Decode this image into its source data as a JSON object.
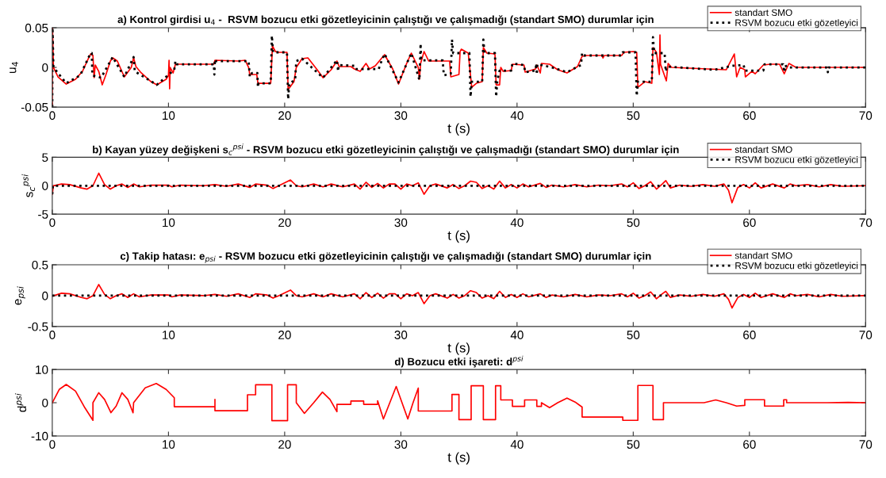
{
  "chart_data": [
    {
      "type": "line",
      "title": "a) Kontrol girdisi u$_{4}$ -  RSVM bozucu etki gözetleyicinin çalıştığı ve çalışmadığı (standart SMO) durumlar için",
      "xlabel": "t (s)",
      "ylabel": "u$_{4}$",
      "xlim": [
        0,
        70
      ],
      "xticks": [
        0,
        10,
        20,
        30,
        40,
        50,
        60,
        70
      ],
      "ylim": [
        -0.05,
        0.05
      ],
      "yticks": [
        -0.05,
        0,
        0.05
      ],
      "grid": false,
      "legend": "top right",
      "series": [
        {
          "name": "standart SMO",
          "color": "#ff0000",
          "line_style": "solid",
          "x": [
            0,
            0.02,
            0.1,
            0.5,
            1.2,
            2.0,
            2.6,
            3.0,
            3.3,
            3.5,
            3.6,
            3.7,
            4.0,
            4.3,
            4.6,
            5.0,
            5.2,
            5.6,
            6.2,
            6.8,
            7.0,
            7.2,
            7.6,
            8.5,
            9.0,
            9.8,
            10.0,
            10.05,
            10.1,
            10.15,
            10.4,
            10.6,
            11,
            13.9,
            14.0,
            16.0,
            16.6,
            16.9,
            17.0,
            17.6,
            17.7,
            18.8,
            18.95,
            19.2,
            19.5,
            20.2,
            20.3,
            20.8,
            21.0,
            21.5,
            22.0,
            22.8,
            23.3,
            24.0,
            24.5,
            24.7,
            25.7,
            26.0,
            26.5,
            27.0,
            27.3,
            27.8,
            28.6,
            29.3,
            29.8,
            30.5,
            30.9,
            31.5,
            31.6,
            31.7,
            32.0,
            32.4,
            33.5,
            34.2,
            34.3,
            35.0,
            35.1,
            35.2,
            35.8,
            36.1,
            36.5,
            37.0,
            37.1,
            37.4,
            38.1,
            38.2,
            38.5,
            38.6,
            38.8,
            39.5,
            39.6,
            40.6,
            40.7,
            41.6,
            41.7,
            42.0,
            42.1,
            42.8,
            43.5,
            44.3,
            45.2,
            45.6,
            46,
            47.3,
            47.4,
            47.5,
            49.0,
            49.2,
            50.0,
            50.3,
            50.4,
            51.0,
            51.6,
            51.7,
            52.0,
            52.25,
            52.3,
            52.35,
            52.85,
            53.0,
            53.3,
            58.0,
            58.7,
            58.9,
            59.2,
            59.6,
            59.65,
            60.2,
            60.5,
            61.2,
            61.8,
            62.6,
            63.0,
            63.4,
            64,
            70
          ],
          "values": [
            -0.05,
            0.05,
            0.0,
            -0.012,
            -0.021,
            -0.015,
            -0.005,
            0.008,
            0.017,
            0.015,
            -0.013,
            0.003,
            -0.005,
            -0.022,
            -0.01,
            0.008,
            0.012,
            0.008,
            -0.012,
            0.0,
            0.012,
            0.001,
            -0.006,
            -0.018,
            -0.022,
            -0.015,
            -0.01,
            0.009,
            -0.027,
            0.0,
            -0.007,
            0.004,
            0.004,
            0.004,
            0.009,
            0.008,
            0.009,
            0.0,
            -0.009,
            -0.009,
            -0.02,
            -0.02,
            0.027,
            0.02,
            0.019,
            0.019,
            -0.028,
            -0.018,
            0.0,
            0.011,
            0.012,
            -0.003,
            -0.013,
            -0.003,
            0.008,
            0.001,
            0.001,
            -0.002,
            -0.005,
            0.005,
            -0.002,
            0.002,
            0.016,
            -0.002,
            -0.021,
            0.005,
            0.018,
            0.0,
            -0.015,
            0.005,
            0.02,
            0.008,
            0.008,
            0.008,
            -0.012,
            -0.009,
            0.02,
            0.023,
            0.018,
            -0.025,
            -0.02,
            -0.018,
            0.025,
            0.018,
            0.017,
            -0.022,
            -0.022,
            0.0,
            -0.005,
            -0.004,
            0.004,
            0.003,
            -0.006,
            -0.002,
            0.003,
            -0.007,
            0.005,
            0.004,
            -0.003,
            -0.007,
            0.001,
            0.014,
            0.015,
            0.015,
            0.012,
            0.015,
            0.015,
            0.019,
            0.02,
            0.019,
            -0.025,
            -0.018,
            -0.02,
            0.025,
            0.019,
            -0.009,
            0.041,
            0.004,
            -0.017,
            0.005,
            0.0,
            -0.003,
            0.017,
            -0.012,
            0.0,
            -0.003,
            -0.012,
            -0.005,
            -0.008,
            0.003,
            0.004,
            0.004,
            -0.008,
            0.005,
            0.0,
            0.0
          ]
        },
        {
          "name": "RSVM bozucu etki gözetleyici",
          "color": "#000000",
          "line_style": "dotted",
          "x": [
            0,
            0.02,
            0.1,
            1.2,
            2.4,
            3.3,
            3.4,
            3.45,
            4.2,
            5.2,
            6.2,
            7.0,
            7.1,
            9.0,
            10.5,
            10.6,
            10.7,
            13.9,
            13.95,
            14.0,
            14.05,
            16.9,
            17.0,
            17.2,
            17.65,
            17.7,
            17.75,
            18.8,
            18.9,
            19.0,
            20.2,
            20.3,
            20.4,
            20.9,
            21.0,
            21.5,
            23.3,
            24.5,
            24.6,
            24.65,
            26.0,
            26.1,
            28.1,
            28.2,
            28.6,
            29.8,
            30.9,
            31.6,
            31.7,
            31.75,
            33.6,
            33.7,
            34.3,
            34.4,
            34.5,
            35.9,
            36.0,
            36.1,
            37.0,
            37.1,
            37.2,
            38.1,
            38.2,
            38.3,
            38.5,
            39.5,
            39.6,
            40.6,
            40.7,
            41.6,
            41.65,
            41.7,
            41.75,
            43.0,
            44.3,
            45.5,
            45.6,
            45.7,
            49.0,
            49.1,
            50.2,
            50.3,
            50.4,
            51.6,
            51.7,
            51.8,
            52.7,
            52.8,
            52.9,
            56,
            57,
            58.5,
            59.5,
            59.6,
            61.2,
            61.3,
            62.9,
            63.0,
            63.1,
            63.2,
            66.7,
            66.75,
            66.8,
            70
          ],
          "values": [
            -0.05,
            0.05,
            0.0,
            -0.02,
            -0.01,
            0.018,
            0.018,
            -0.01,
            -0.013,
            0.013,
            -0.012,
            0.013,
            -0.005,
            -0.022,
            -0.003,
            0.008,
            0.004,
            0.004,
            -0.009,
            0.01,
            0.008,
            0.008,
            -0.012,
            -0.007,
            -0.007,
            -0.025,
            -0.02,
            -0.02,
            0.04,
            0.019,
            0.019,
            -0.04,
            -0.02,
            -0.016,
            0.008,
            0.011,
            -0.013,
            0.009,
            -0.005,
            0.003,
            0.002,
            -0.002,
            -0.002,
            0.003,
            0.017,
            -0.019,
            0.018,
            -0.016,
            0.03,
            0.009,
            0.009,
            -0.01,
            -0.008,
            0.035,
            0.018,
            0.018,
            -0.037,
            -0.018,
            -0.018,
            0.035,
            0.018,
            0.018,
            -0.037,
            -0.017,
            -0.004,
            -0.004,
            0.005,
            0.003,
            -0.006,
            -0.004,
            0.005,
            -0.009,
            0.004,
            0.0,
            -0.006,
            0.003,
            0.018,
            0.015,
            0.015,
            0.019,
            0.019,
            -0.036,
            -0.018,
            -0.018,
            0.038,
            0.018,
            0.018,
            -0.005,
            0.001,
            -0.002,
            -0.003,
            0.002,
            0.003,
            -0.004,
            -0.004,
            0.004,
            0.004,
            -0.006,
            0.003,
            0.0,
            0.0,
            -0.006,
            0.0,
            0.0
          ]
        }
      ]
    },
    {
      "type": "line",
      "title": "b) Kayan yüzey değişkeni s$_{c}$$^{psi}$ - RSVM bozucu etki gözetleyicinin çalıştığı ve çalışmadığı (standart SMO) durumlar için",
      "xlabel": "t (s)",
      "ylabel": "s$_{c}$$^{psi}$",
      "xlim": [
        0,
        70
      ],
      "xticks": [
        0,
        10,
        20,
        30,
        40,
        50,
        60,
        70
      ],
      "ylim": [
        -5,
        5
      ],
      "yticks": [
        -5,
        0,
        5
      ],
      "grid": false,
      "legend": "top right",
      "series": [
        {
          "name": "standart SMO",
          "color": "#ff0000",
          "line_style": "solid",
          "x": [
            0,
            0.1,
            0.8,
            1.5,
            2.5,
            3,
            3.5,
            4.0,
            4.5,
            5,
            5.5,
            6,
            6.5,
            7,
            7.5,
            8.5,
            10,
            10.3,
            11,
            13,
            14,
            15,
            16,
            17,
            17.5,
            18.5,
            19,
            19.5,
            20.5,
            21,
            21.5,
            22.5,
            23.3,
            24,
            25,
            26,
            26.5,
            27,
            27.5,
            28,
            28.5,
            29,
            29.5,
            30,
            30.5,
            31,
            31.5,
            32,
            32.5,
            33,
            34,
            34.5,
            35,
            35.5,
            36,
            36.5,
            37,
            37.5,
            38,
            38.5,
            39,
            39.5,
            40,
            40.5,
            41,
            42,
            42.5,
            43,
            44,
            45,
            46,
            47,
            48,
            49,
            49.5,
            50,
            50.5,
            51,
            51.5,
            52,
            52.5,
            52.8,
            53.2,
            54,
            55,
            56,
            57,
            57.8,
            58.2,
            58.5,
            59,
            59.5,
            60,
            60.5,
            61,
            62,
            63,
            63.5,
            64,
            65,
            66,
            67,
            68,
            70
          ],
          "values": [
            -1.5,
            0,
            0.3,
            0.2,
            -0.4,
            -0.6,
            0,
            2.2,
            0.2,
            -0.6,
            0,
            0.3,
            -0.3,
            0.3,
            -0.2,
            0.1,
            0.1,
            -0.2,
            0.1,
            0,
            0.2,
            -0.1,
            0.3,
            -0.3,
            0.3,
            0.1,
            -0.5,
            0,
            1.0,
            0,
            -0.2,
            0.3,
            -0.2,
            0.3,
            -0.2,
            0.3,
            -0.6,
            0.6,
            -0.3,
            0.4,
            -0.4,
            0.3,
            0.3,
            -0.6,
            0.3,
            0,
            0.5,
            -1.5,
            0,
            0.3,
            -0.4,
            0.2,
            -0.5,
            0,
            0.8,
            0.6,
            -0.5,
            0,
            -0.6,
            0.8,
            -0.4,
            0.2,
            -0.4,
            0.3,
            -0.2,
            0.4,
            -0.3,
            0.1,
            -0.2,
            0.2,
            -0.2,
            0.1,
            0,
            0.3,
            -0.2,
            0.5,
            -0.5,
            0,
            0.7,
            -0.6,
            0.3,
            0.9,
            -0.4,
            0.1,
            -0.1,
            0.2,
            -0.1,
            0.3,
            -0.8,
            -3.0,
            -0.3,
            0.2,
            -0.4,
            0.5,
            -0.4,
            0.3,
            -0.4,
            0.3,
            0,
            0.2,
            -0.2,
            0.2,
            -0.1,
            0
          ]
        },
        {
          "name": "RSVM bozucu etki gözetleyici",
          "color": "#000000",
          "line_style": "dotted",
          "x": [
            0,
            0.05,
            70
          ],
          "values": [
            -1.5,
            0,
            0
          ]
        }
      ]
    },
    {
      "type": "line",
      "title": "c) Takip hatası: e$_{psi}$ - RSVM bozucu etki gözetleyicinin çalıştığı ve çalışmadığı (standart SMO) durumlar için",
      "xlabel": "t (s)",
      "ylabel": "e$_{psi}$",
      "xlim": [
        0,
        70
      ],
      "xticks": [
        0,
        10,
        20,
        30,
        40,
        50,
        60,
        70
      ],
      "ylim": [
        -0.5,
        0.5
      ],
      "yticks": [
        -0.5,
        0,
        0.5
      ],
      "grid": false,
      "legend": "top right",
      "series": [
        {
          "name": "standart SMO",
          "color": "#ff0000",
          "line_style": "solid",
          "x": [
            0,
            0.1,
            0.8,
            1.5,
            2.5,
            3,
            3.5,
            4.0,
            4.5,
            5,
            5.5,
            6,
            6.5,
            7,
            7.5,
            8.5,
            10,
            10.3,
            11,
            13,
            14,
            15,
            16,
            17,
            17.5,
            18.5,
            19,
            19.5,
            20.5,
            21,
            21.5,
            22.5,
            23.3,
            24,
            25,
            26,
            26.5,
            27,
            27.5,
            28,
            28.5,
            29,
            29.5,
            30,
            30.5,
            31,
            31.5,
            32,
            32.5,
            33,
            34,
            34.5,
            35,
            35.5,
            36,
            36.5,
            37,
            37.5,
            38,
            38.5,
            39,
            39.5,
            40,
            40.5,
            41,
            42,
            42.5,
            43,
            44,
            45,
            46,
            47,
            48,
            49,
            49.5,
            50,
            50.5,
            51,
            51.5,
            52,
            52.5,
            52.8,
            53.2,
            54,
            55,
            56,
            57,
            57.8,
            58.2,
            58.5,
            59,
            59.5,
            60,
            60.5,
            61,
            62,
            63,
            63.5,
            64,
            65,
            66,
            67,
            68,
            70
          ],
          "values": [
            -0.01,
            0,
            0.04,
            0.03,
            -0.03,
            -0.05,
            0,
            0.18,
            0.02,
            -0.05,
            0,
            0.03,
            -0.03,
            0.03,
            -0.02,
            0.01,
            0.01,
            -0.02,
            0.01,
            0,
            0.02,
            -0.01,
            0.03,
            -0.03,
            0.03,
            0.01,
            -0.04,
            0,
            0.09,
            0,
            -0.02,
            0.03,
            -0.02,
            0.03,
            -0.02,
            0.03,
            -0.05,
            0.05,
            -0.03,
            0.04,
            -0.04,
            0.03,
            0.03,
            -0.05,
            0.03,
            0,
            0.05,
            -0.13,
            0,
            0.03,
            -0.04,
            0.02,
            -0.04,
            0,
            0.08,
            0.05,
            -0.04,
            0,
            -0.05,
            0.07,
            -0.03,
            0.02,
            -0.03,
            0.03,
            -0.02,
            0.03,
            -0.03,
            0.01,
            -0.02,
            0.02,
            -0.02,
            0.01,
            0,
            0.03,
            -0.02,
            0.04,
            -0.04,
            0,
            0.06,
            -0.05,
            0.03,
            0.07,
            -0.03,
            0.01,
            -0.01,
            0.02,
            -0.01,
            0.03,
            -0.06,
            -0.2,
            -0.03,
            0.02,
            -0.03,
            0.04,
            -0.03,
            0.03,
            -0.03,
            0.03,
            0,
            0.02,
            -0.02,
            0.02,
            -0.01,
            0
          ]
        },
        {
          "name": "RSVM bozucu etki gözetleyici",
          "color": "#000000",
          "line_style": "dotted",
          "x": [
            0,
            70
          ],
          "values": [
            0,
            0
          ]
        }
      ]
    },
    {
      "type": "line",
      "title": "d) Bozucu etki işareti: d$^{psi}$",
      "xlabel": "t (s)",
      "ylabel": "d$^{psi}$",
      "xlim": [
        0,
        70
      ],
      "xticks": [
        0,
        10,
        20,
        30,
        40,
        50,
        60,
        70
      ],
      "ylim": [
        -10,
        10
      ],
      "yticks": [
        -10,
        0,
        10
      ],
      "grid": false,
      "series": [
        {
          "color": "#ff0000",
          "line_style": "solid",
          "x": [
            0,
            0.6,
            1.2,
            2.0,
            2.8,
            3.5,
            3.5,
            4.0,
            4.5,
            5.05,
            5.5,
            6.0,
            6.5,
            6.95,
            7.0,
            8.0,
            8.95,
            9.8,
            10.5,
            10.5,
            14.0,
            14.0,
            14.0,
            16.8,
            16.8,
            17.5,
            17.5,
            18.9,
            18.9,
            20.25,
            20.25,
            21.0,
            21.0,
            21.7,
            22.5,
            23.25,
            23.9,
            24.5,
            24.5,
            25.7,
            25.7,
            26.8,
            26.8,
            28.0,
            28.0,
            28.5,
            29.05,
            29.6,
            30.1,
            30.6,
            31.05,
            31.5,
            31.5,
            34.4,
            34.4,
            35.0,
            35.0,
            36.05,
            36.05,
            37.1,
            37.1,
            38.15,
            38.15,
            38.6,
            38.6,
            39.6,
            39.6,
            40.65,
            40.65,
            41.7,
            41.7,
            42.1,
            42.1,
            42.8,
            43.5,
            44.3,
            45.0,
            45.6,
            45.6,
            49.1,
            49.1,
            50.4,
            50.4,
            51.7,
            51.7,
            52.6,
            52.6,
            56.1,
            57.1,
            58.0,
            58.9,
            59.6,
            59.6,
            61.3,
            61.3,
            62.95,
            62.95,
            63.2,
            63.2,
            66.7,
            68.5,
            70
          ],
          "values": [
            0,
            4.0,
            5.5,
            3.5,
            -1.5,
            -5.3,
            0,
            3.0,
            1.0,
            -3.0,
            -1.0,
            3.0,
            1.0,
            -3.0,
            0,
            4.5,
            5.8,
            4.0,
            1.5,
            -1.2,
            -1.2,
            1.0,
            -2.4,
            -2.4,
            2.4,
            2.4,
            5.4,
            5.4,
            -5.4,
            -5.4,
            5.4,
            5.4,
            0,
            -3.2,
            0,
            3.2,
            1.0,
            -2.7,
            -0.5,
            -0.5,
            0.5,
            0.5,
            -0.5,
            -0.5,
            0.6,
            -4.9,
            0,
            4.9,
            0,
            -4.9,
            0,
            4.4,
            -2.5,
            -2.5,
            2.5,
            2.5,
            -5.1,
            -5.1,
            5.1,
            5.1,
            -5.1,
            -5.1,
            5.1,
            5.1,
            0.85,
            0.85,
            -1.1,
            -1.1,
            0.85,
            0.85,
            -1.1,
            -1.1,
            0,
            -1.5,
            0,
            1.4,
            0.2,
            -1.3,
            -4.3,
            -4.3,
            -5.3,
            -5.3,
            5.2,
            5.2,
            -5.1,
            -5.1,
            0,
            0,
            0.85,
            0,
            -1.0,
            -0.8,
            0.9,
            0.9,
            -1.0,
            -1.0,
            0.9,
            0.9,
            0,
            0,
            0.1,
            0
          ]
        }
      ]
    }
  ]
}
